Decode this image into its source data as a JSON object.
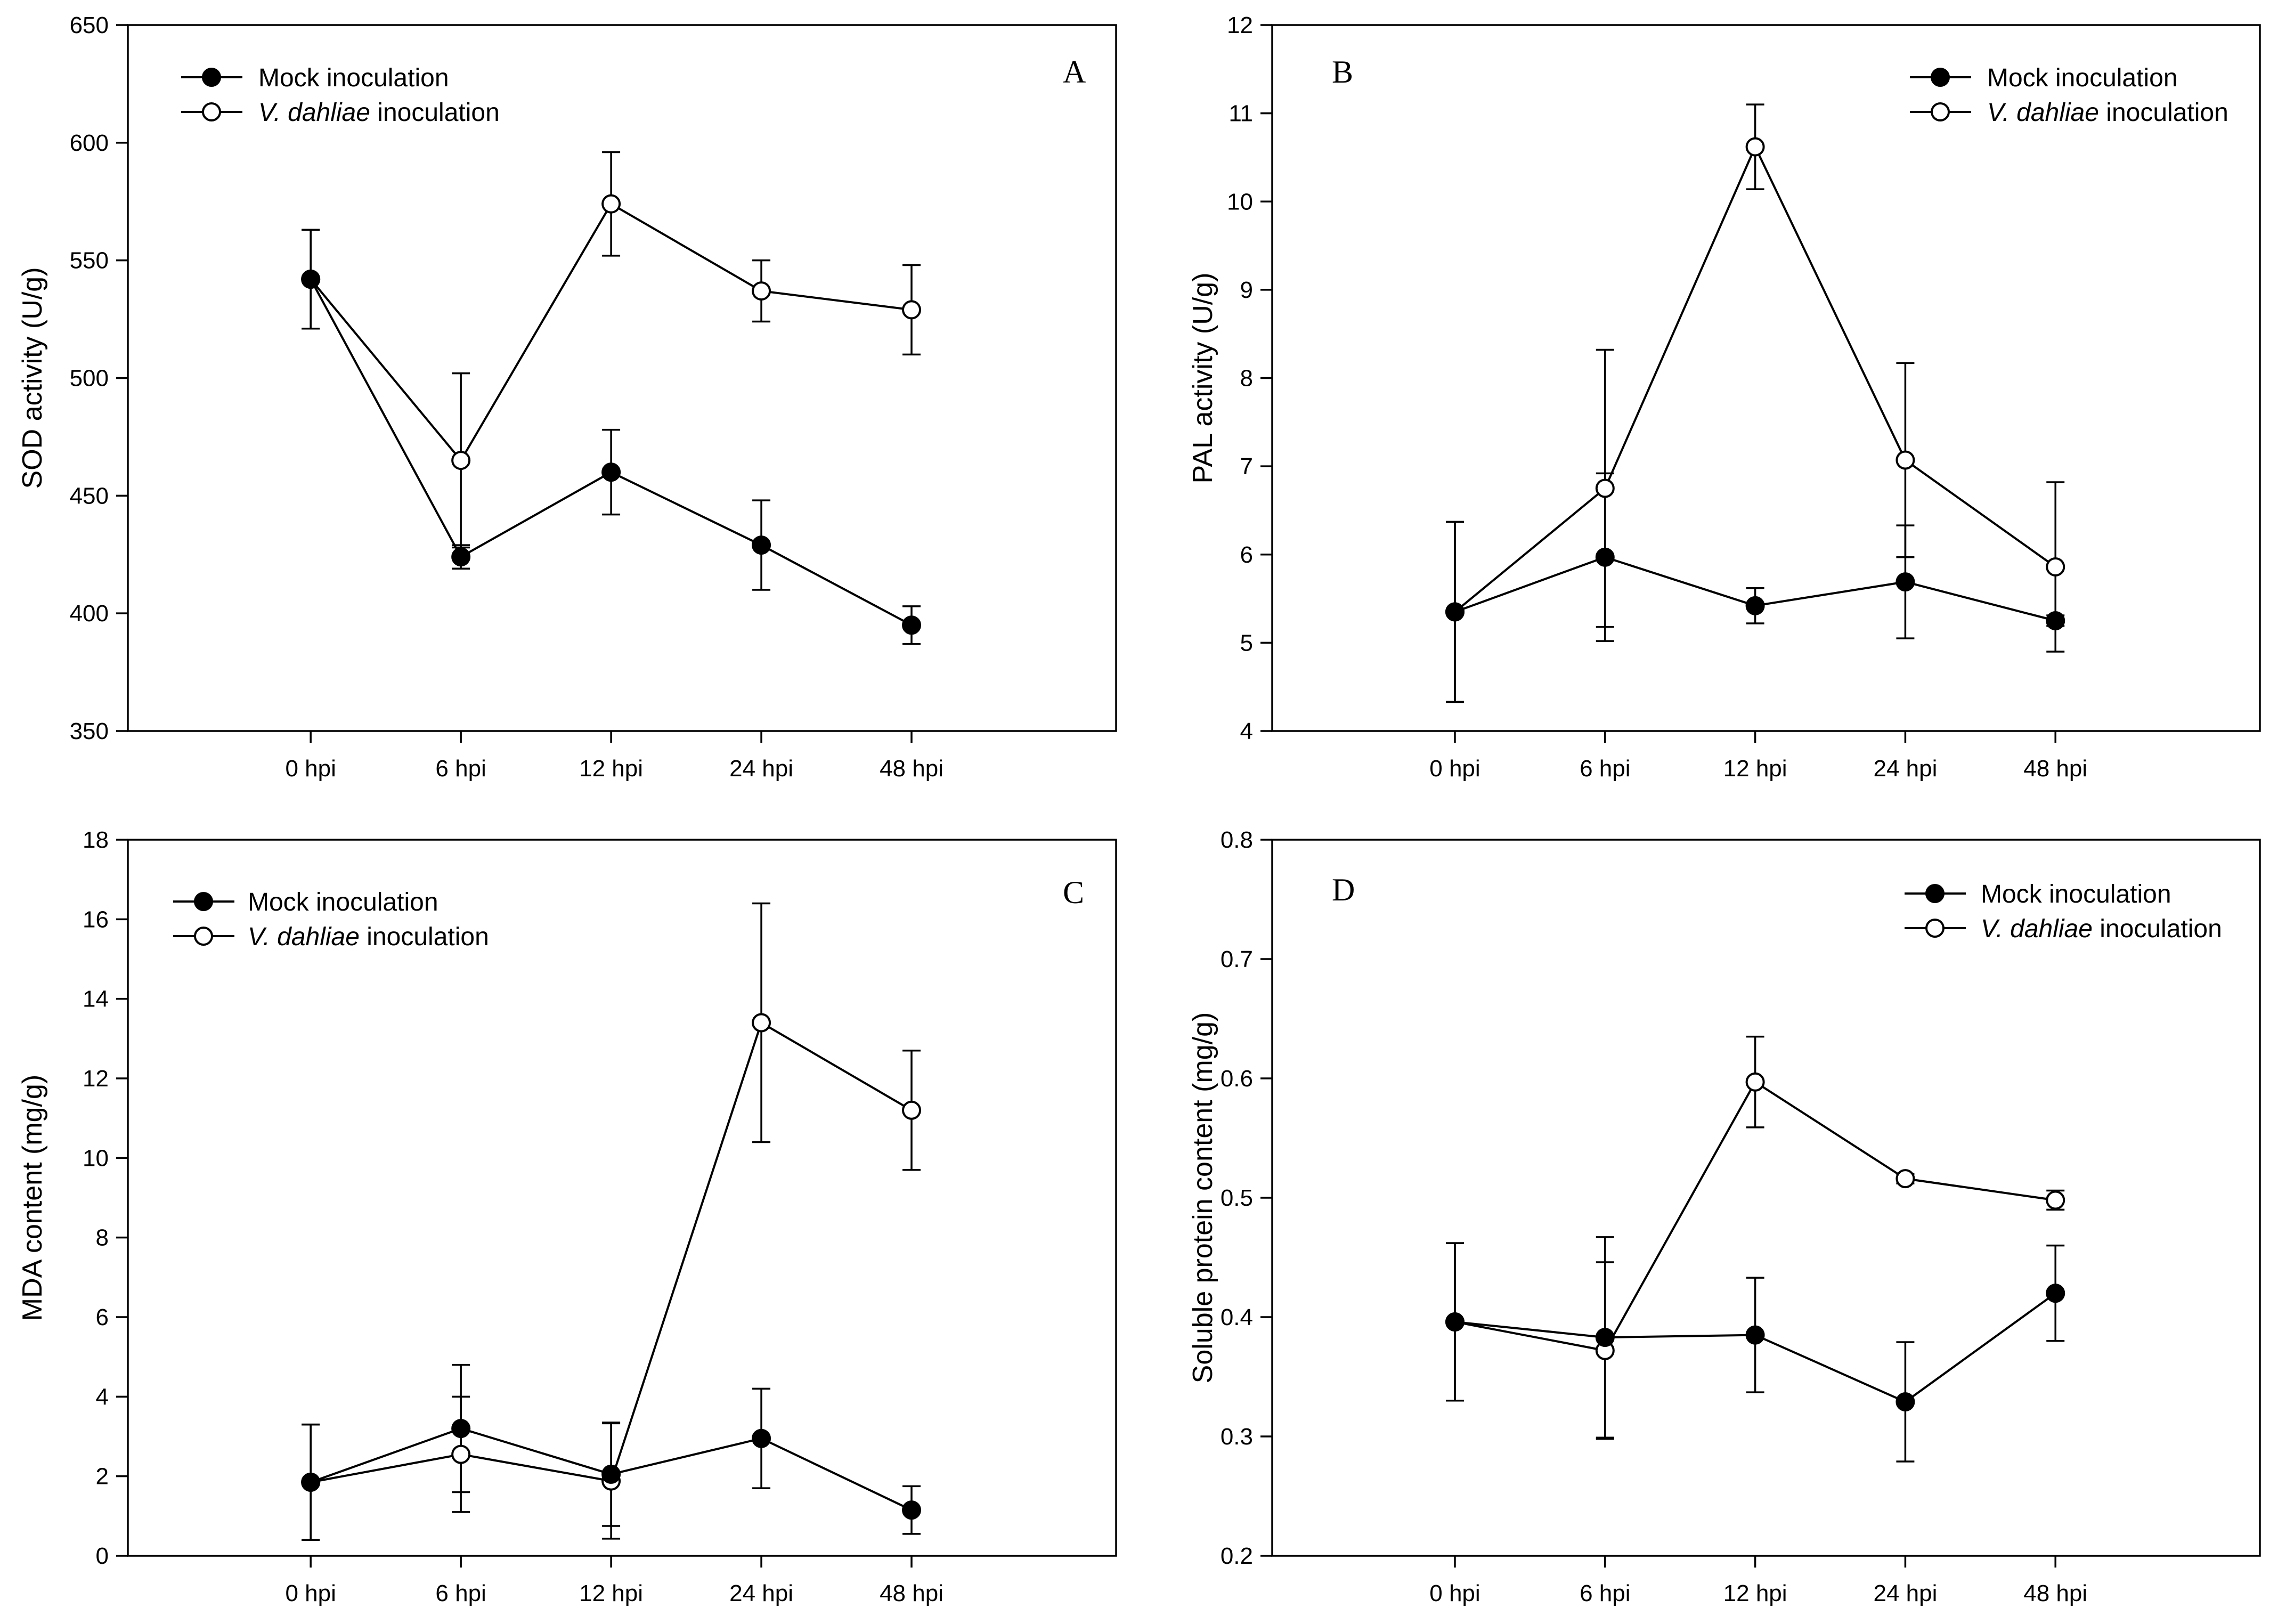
{
  "chart_data": [
    {
      "type": "line",
      "panel": "A",
      "x": [
        "0 hpi",
        "6 hpi",
        "12 hpi",
        "24 hpi",
        "48 hpi"
      ],
      "ylabel": "SOD activity (U/g)",
      "xlabel": "",
      "ylim": [
        350,
        650
      ],
      "yticks": [
        350,
        400,
        450,
        500,
        550,
        600,
        650
      ],
      "legend": "top-left",
      "series": [
        {
          "name": "Mock inoculation",
          "marker": "filled-circle",
          "values": [
            542,
            424,
            460,
            429,
            395
          ],
          "errors": [
            21,
            5,
            18,
            19,
            8
          ]
        },
        {
          "name": "V. dahliae inoculation",
          "marker": "open-circle",
          "values": [
            542,
            465,
            574,
            537,
            529
          ],
          "errors": [
            21,
            37,
            22,
            13,
            19
          ]
        }
      ]
    },
    {
      "type": "line",
      "panel": "B",
      "x": [
        "0 hpi",
        "6 hpi",
        "12 hpi",
        "24 hpi",
        "48 hpi"
      ],
      "ylabel": "PAL activity (U/g)",
      "xlabel": "",
      "ylim": [
        4,
        12
      ],
      "yticks": [
        4,
        5,
        6,
        7,
        8,
        9,
        10,
        11,
        12
      ],
      "legend": "top-right",
      "series": [
        {
          "name": "Mock inoculation",
          "marker": "filled-circle",
          "values": [
            5.35,
            5.97,
            5.42,
            5.69,
            5.25
          ],
          "errors": [
            1.02,
            0.95,
            0.2,
            0.64,
            0.06
          ]
        },
        {
          "name": "V. dahliae inoculation",
          "marker": "open-circle",
          "values": [
            5.35,
            6.75,
            10.62,
            7.07,
            5.86
          ],
          "errors": [
            1.02,
            1.57,
            0.48,
            1.1,
            0.96
          ]
        }
      ]
    },
    {
      "type": "line",
      "panel": "C",
      "x": [
        "0 hpi",
        "6 hpi",
        "12 hpi",
        "24 hpi",
        "48 hpi"
      ],
      "ylabel": "MDA content (mg/g)",
      "xlabel": "",
      "ylim": [
        0,
        18
      ],
      "yticks": [
        0,
        2,
        4,
        6,
        8,
        10,
        12,
        14,
        16,
        18
      ],
      "legend": "top-left",
      "series": [
        {
          "name": "Mock inoculation",
          "marker": "filled-circle",
          "values": [
            1.85,
            3.2,
            2.05,
            2.95,
            1.15
          ],
          "errors": [
            1.45,
            1.6,
            1.3,
            1.25,
            0.6
          ]
        },
        {
          "name": "V. dahliae inoculation",
          "marker": "open-circle",
          "values": [
            1.85,
            2.55,
            1.88,
            13.4,
            11.2
          ],
          "errors": [
            1.45,
            1.45,
            1.45,
            3.0,
            1.5
          ]
        }
      ]
    },
    {
      "type": "line",
      "panel": "D",
      "x": [
        "0 hpi",
        "6 hpi",
        "12 hpi",
        "24 hpi",
        "48 hpi"
      ],
      "ylabel": "Soluble protein content (mg/g)",
      "xlabel": "",
      "ylim": [
        0.2,
        0.8
      ],
      "yticks": [
        0.2,
        0.3,
        0.4,
        0.5,
        0.6,
        0.7,
        0.8
      ],
      "legend": "top-right",
      "series": [
        {
          "name": "Mock inoculation",
          "marker": "filled-circle",
          "values": [
            0.396,
            0.383,
            0.385,
            0.329,
            0.42
          ],
          "errors": [
            0.066,
            0.084,
            0.048,
            0.05,
            0.04
          ]
        },
        {
          "name": "V. dahliae inoculation",
          "marker": "open-circle",
          "values": [
            0.396,
            0.372,
            0.597,
            0.516,
            0.498
          ],
          "errors": [
            0.066,
            0.074,
            0.038,
            0.004,
            0.008
          ]
        }
      ]
    }
  ]
}
